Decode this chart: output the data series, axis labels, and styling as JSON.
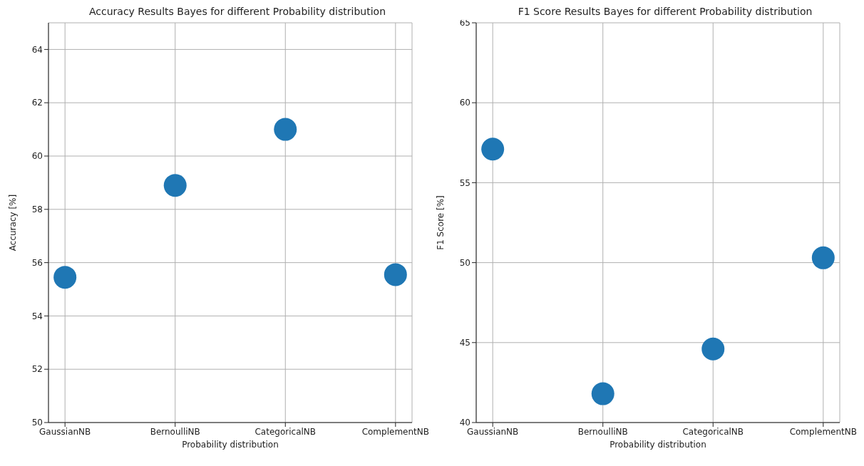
{
  "chart_data": [
    {
      "type": "scatter",
      "title": "Accuracy Results Bayes for different Probability distribution",
      "xlabel": "Probability distribution",
      "ylabel": "Accuracy [%]",
      "categories": [
        "GaussianNB",
        "BernoulliNB",
        "CategoricalNB",
        "ComplementNB"
      ],
      "values": [
        55.45,
        58.9,
        61.0,
        55.55
      ],
      "color": "#1f77b4",
      "ylim": [
        50,
        65
      ],
      "yticks": [
        50,
        52,
        54,
        56,
        58,
        60,
        62,
        64
      ],
      "grid": true,
      "marker": "circle"
    },
    {
      "type": "scatter",
      "title": "F1 Score Results Bayes for different Probability distribution",
      "xlabel": "Probability distribution",
      "ylabel": "F1 Score [%]",
      "categories": [
        "GaussianNB",
        "BernoulliNB",
        "CategoricalNB",
        "ComplementNB"
      ],
      "values": [
        57.1,
        41.8,
        44.6,
        50.3
      ],
      "color": "#1f77b4",
      "ylim": [
        40,
        65
      ],
      "yticks": [
        40,
        45,
        50,
        55,
        60,
        65
      ],
      "grid": true,
      "marker": "circle"
    }
  ]
}
